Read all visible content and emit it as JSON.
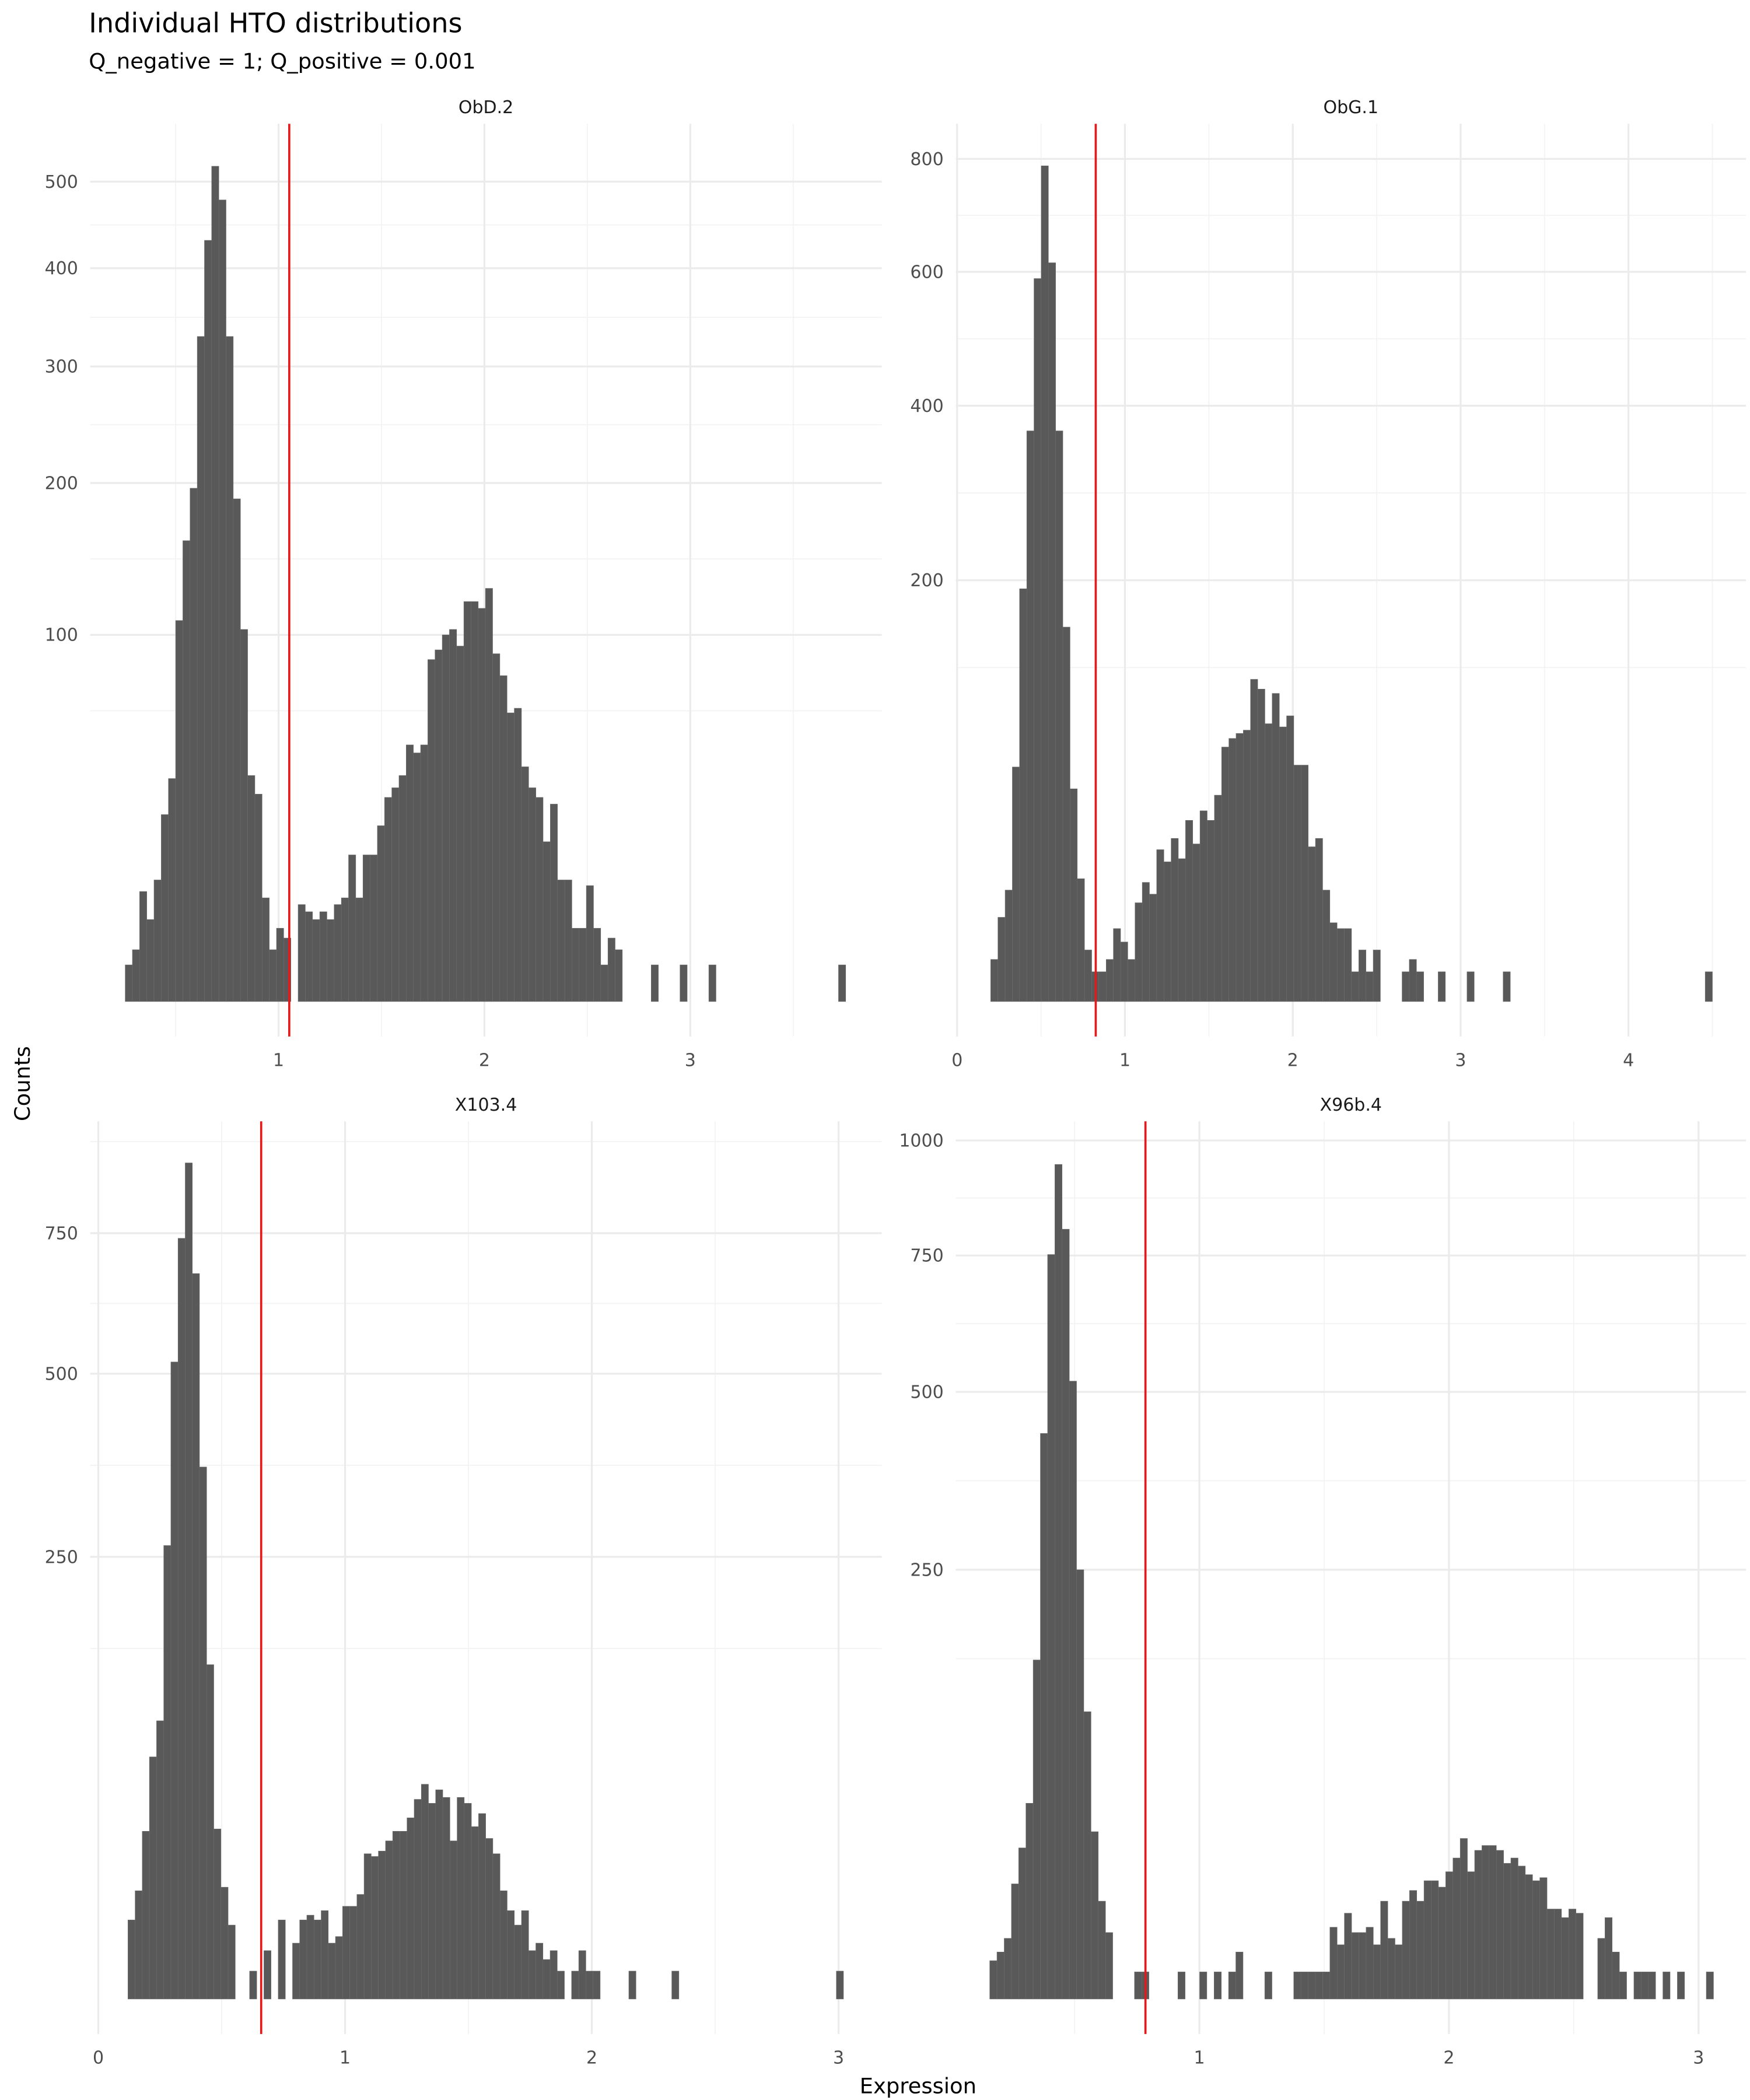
{
  "title": "Individual HTO distributions",
  "subtitle": "Q_negative = 1; Q_positive = 0.001",
  "xlabel": "Expression",
  "ylabel": "Counts",
  "chart_data": [
    {
      "type": "histogram",
      "title": "ObD.2",
      "y_scale": "sqrt",
      "grid": true,
      "color": "#595959",
      "threshold": 1.052,
      "threshold_color": "#e31a1c",
      "xlim": [
        0.085,
        3.93
      ],
      "ylim": [
        0,
        573
      ],
      "xticks": [
        1,
        2,
        3
      ],
      "yticks": [
        100,
        200,
        300,
        400,
        500
      ],
      "bins": [
        0.255,
        0.29,
        0.325,
        0.36,
        0.395,
        0.43,
        0.465,
        0.5,
        0.535,
        0.57,
        0.605,
        0.64,
        0.675,
        0.71,
        0.745,
        0.78,
        0.815,
        0.85,
        0.885,
        0.92,
        0.955,
        0.99,
        1.025,
        1.06,
        1.095,
        1.13,
        1.165,
        1.2,
        1.235,
        1.27,
        1.305,
        1.34,
        1.375,
        1.41,
        1.445,
        1.48,
        1.515,
        1.55,
        1.585,
        1.62,
        1.655,
        1.69,
        1.725,
        1.76,
        1.795,
        1.83,
        1.865,
        1.9,
        1.935,
        1.97,
        2.005,
        2.04,
        2.075,
        2.11,
        2.145,
        2.18,
        2.215,
        2.25,
        2.285,
        2.32,
        2.355,
        2.39,
        2.425,
        2.46,
        2.495,
        2.53,
        2.565,
        2.6,
        2.635,
        2.67,
        2.705,
        2.74,
        2.775,
        2.81,
        2.845,
        2.88,
        2.915,
        2.95,
        2.985,
        3.02,
        3.055,
        3.09,
        3.125,
        3.16,
        3.195,
        3.23,
        3.265,
        3.3,
        3.335,
        3.37,
        3.405,
        3.44,
        3.475,
        3.51,
        3.545,
        3.58,
        3.615,
        3.65,
        3.685,
        3.72,
        3.755
      ],
      "values": [
        1,
        2,
        9,
        5,
        11,
        26,
        37,
        108,
        158,
        196,
        329,
        431,
        519,
        478,
        329,
        188,
        103,
        38,
        32,
        8,
        2,
        4,
        3,
        0,
        7,
        6,
        5,
        6,
        5,
        7,
        8,
        16,
        8,
        16,
        16,
        23,
        31,
        34,
        38,
        49,
        46,
        49,
        87,
        92,
        100,
        103,
        94,
        119,
        119,
        115,
        127,
        90,
        79,
        62,
        64,
        41,
        34,
        31,
        19,
        29,
        11,
        11,
        4,
        4,
        10,
        4,
        1,
        3,
        2,
        0,
        0,
        0,
        0,
        1,
        0,
        0,
        0,
        1,
        0,
        0,
        0,
        1,
        0,
        0,
        0,
        0,
        0,
        0,
        0,
        0,
        0,
        0,
        0,
        0,
        0,
        0,
        0,
        0,
        0,
        1
      ]
    },
    {
      "type": "histogram",
      "title": "ObG.1",
      "y_scale": "sqrt",
      "grid": true,
      "color": "#595959",
      "threshold": 0.826,
      "threshold_color": "#e31a1c",
      "xlim": [
        -0.008,
        4.7
      ],
      "ylim": [
        0,
        868
      ],
      "xticks": [
        0,
        1,
        2,
        3,
        4
      ],
      "yticks": [
        200,
        400,
        600,
        800
      ],
      "bins": [
        0.2,
        0.243,
        0.286,
        0.329,
        0.372,
        0.415,
        0.458,
        0.501,
        0.544,
        0.587,
        0.63,
        0.673,
        0.716,
        0.759,
        0.802,
        0.845,
        0.888,
        0.931,
        0.974,
        1.017,
        1.06,
        1.103,
        1.146,
        1.189,
        1.232,
        1.275,
        1.318,
        1.361,
        1.404,
        1.447,
        1.49,
        1.533,
        1.576,
        1.619,
        1.662,
        1.705,
        1.748,
        1.791,
        1.834,
        1.877,
        1.92,
        1.963,
        2.006,
        2.049,
        2.092,
        2.135,
        2.178,
        2.221,
        2.264,
        2.307,
        2.35,
        2.393,
        2.436,
        2.479,
        2.522,
        2.565,
        2.608,
        2.651,
        2.694,
        2.737,
        2.78,
        2.823,
        2.866,
        2.909,
        2.952,
        2.995,
        3.038,
        3.081,
        3.124,
        3.167,
        3.21,
        3.253,
        3.296,
        3.339,
        3.382,
        3.425,
        3.468,
        3.511,
        3.554,
        3.597,
        3.64,
        3.683,
        3.726,
        3.769,
        3.812,
        3.855,
        3.898,
        3.941,
        3.984,
        4.027,
        4.07,
        4.113,
        4.156,
        4.199,
        4.242,
        4.285,
        4.328,
        4.371,
        4.414,
        4.457,
        4.5
      ],
      "values": [
        2,
        8,
        14,
        62,
        192,
        367,
        589,
        787,
        615,
        367,
        158,
        51,
        17,
        3,
        1,
        1,
        2,
        6,
        4,
        2,
        11,
        16,
        13,
        26,
        22,
        30,
        23,
        37,
        28,
        41,
        37,
        48,
        73,
        78,
        81,
        83,
        117,
        110,
        87,
        107,
        85,
        92,
        63,
        63,
        27,
        30,
        14,
        7,
        6,
        6,
        1,
        3,
        1,
        3,
        0,
        0,
        0,
        1,
        2,
        1,
        0,
        0,
        1,
        0,
        0,
        0,
        1,
        0,
        0,
        0,
        0,
        1,
        0,
        0,
        0,
        0,
        0,
        0,
        0,
        0,
        0,
        0,
        0,
        0,
        0,
        0,
        0,
        0,
        0,
        0,
        0,
        0,
        0,
        0,
        0,
        0,
        0,
        0,
        0,
        1
      ]
    },
    {
      "type": "histogram",
      "title": "X103.4",
      "y_scale": "sqrt",
      "grid": true,
      "color": "#595959",
      "threshold": 0.66,
      "threshold_color": "#e31a1c",
      "xlim": [
        -0.033,
        3.175
      ],
      "ylim": [
        0,
        985
      ],
      "xticks": [
        0,
        1,
        2,
        3
      ],
      "yticks": [
        250,
        500,
        750
      ],
      "bins": [
        0.12,
        0.149,
        0.178,
        0.207,
        0.236,
        0.265,
        0.294,
        0.323,
        0.352,
        0.381,
        0.41,
        0.439,
        0.468,
        0.497,
        0.526,
        0.555,
        0.584,
        0.613,
        0.642,
        0.671,
        0.7,
        0.729,
        0.758,
        0.787,
        0.816,
        0.845,
        0.874,
        0.903,
        0.932,
        0.961,
        0.99,
        1.019,
        1.048,
        1.077,
        1.106,
        1.135,
        1.164,
        1.193,
        1.222,
        1.251,
        1.28,
        1.309,
        1.338,
        1.367,
        1.396,
        1.425,
        1.454,
        1.483,
        1.512,
        1.541,
        1.57,
        1.599,
        1.628,
        1.657,
        1.686,
        1.715,
        1.744,
        1.773,
        1.802,
        1.831,
        1.86,
        1.889,
        1.918,
        1.947,
        1.976,
        2.005,
        2.034,
        2.063,
        2.092,
        2.121,
        2.15,
        2.179,
        2.208,
        2.237,
        2.266,
        2.295,
        2.324,
        2.353,
        2.382,
        2.411,
        2.44,
        2.469,
        2.498,
        2.527,
        2.556,
        2.585,
        2.614,
        2.643,
        2.672,
        2.701,
        2.73,
        2.759,
        2.788,
        2.817,
        2.846,
        2.875,
        2.904,
        2.933,
        2.962,
        2.991,
        3.02
      ],
      "values": [
        8,
        15,
        36,
        75,
        99,
        263,
        519,
        740,
        894,
        673,
        362,
        143,
        37,
        16,
        7,
        0,
        0,
        1,
        0,
        3,
        0,
        8,
        0,
        4,
        8,
        9,
        8,
        10,
        4,
        5,
        11,
        11,
        14,
        27,
        26,
        28,
        32,
        36,
        36,
        42,
        51,
        59,
        49,
        56,
        52,
        32,
        52,
        49,
        38,
        44,
        33,
        27,
        15,
        10,
        7,
        10,
        3,
        4,
        2,
        3,
        1,
        0,
        1,
        3,
        1,
        1,
        0,
        0,
        0,
        0,
        1,
        0,
        0,
        0,
        0,
        0,
        1,
        0,
        0,
        0,
        0,
        0,
        0,
        0,
        0,
        0,
        0,
        0,
        0,
        0,
        0,
        0,
        0,
        0,
        0,
        0,
        0,
        0,
        0,
        1
      ]
    },
    {
      "type": "histogram",
      "title": "X96b.4",
      "y_scale": "sqrt",
      "grid": true,
      "color": "#595959",
      "threshold": 0.784,
      "threshold_color": "#e31a1c",
      "xlim": [
        0.024,
        3.19
      ],
      "ylim": [
        0,
        1045
      ],
      "xticks": [
        1,
        2,
        3
      ],
      "yticks": [
        250,
        500,
        750,
        1000
      ],
      "bins": [
        0.16,
        0.189,
        0.218,
        0.247,
        0.276,
        0.305,
        0.334,
        0.363,
        0.392,
        0.421,
        0.45,
        0.479,
        0.508,
        0.537,
        0.566,
        0.595,
        0.624,
        0.653,
        0.682,
        0.711,
        0.74,
        0.769,
        0.798,
        0.827,
        0.856,
        0.885,
        0.914,
        0.943,
        0.972,
        1.001,
        1.03,
        1.059,
        1.088,
        1.117,
        1.146,
        1.175,
        1.204,
        1.233,
        1.262,
        1.291,
        1.32,
        1.349,
        1.378,
        1.407,
        1.436,
        1.465,
        1.494,
        1.523,
        1.552,
        1.581,
        1.61,
        1.639,
        1.668,
        1.697,
        1.726,
        1.755,
        1.784,
        1.813,
        1.842,
        1.871,
        1.9,
        1.929,
        1.958,
        1.987,
        2.016,
        2.045,
        2.074,
        2.103,
        2.132,
        2.161,
        2.19,
        2.219,
        2.248,
        2.277,
        2.306,
        2.335,
        2.364,
        2.393,
        2.422,
        2.451,
        2.48,
        2.509,
        2.538,
        2.567,
        2.596,
        2.625,
        2.654,
        2.683,
        2.712,
        2.741,
        2.77,
        2.799,
        2.828,
        2.857,
        2.886,
        2.915,
        2.944,
        2.973,
        3.002,
        3.031,
        3.06
      ],
      "values": [
        2,
        3,
        5,
        18,
        31,
        52,
        156,
        434,
        752,
        945,
        804,
        518,
        250,
        112,
        38,
        13,
        6,
        0,
        0,
        0,
        1,
        1,
        0,
        0,
        0,
        0,
        1,
        0,
        0,
        1,
        0,
        1,
        0,
        1,
        3,
        0,
        0,
        0,
        1,
        0,
        0,
        0,
        1,
        1,
        1,
        1,
        1,
        7,
        4,
        10,
        6,
        6,
        7,
        4,
        13,
        5,
        4,
        13,
        16,
        13,
        19,
        19,
        17,
        22,
        27,
        35,
        22,
        30,
        32,
        32,
        30,
        25,
        27,
        24,
        21,
        19,
        20,
        11,
        11,
        9,
        11,
        10,
        0,
        0,
        5,
        9,
        3,
        1,
        0,
        1,
        1,
        1,
        0,
        1,
        0,
        1,
        0,
        0,
        0,
        1
      ]
    }
  ]
}
